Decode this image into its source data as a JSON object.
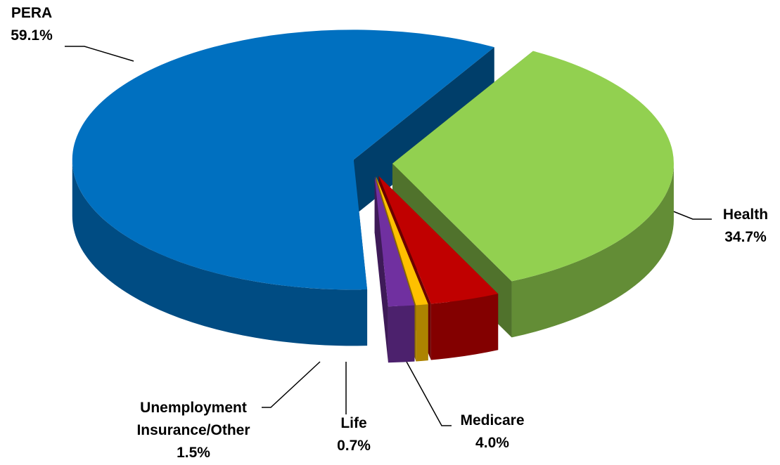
{
  "chart_data": {
    "type": "pie3d",
    "categories": [
      "Health",
      "Medicare",
      "Life",
      "Unemployment Insurance/Other",
      "PERA"
    ],
    "values": [
      34.7,
      4.0,
      0.7,
      1.5,
      59.1
    ],
    "value_labels": [
      "34.7%",
      "4.0%",
      "0.7%",
      "1.5%",
      "59.1%"
    ],
    "colors": [
      "#92d050",
      "#c00000",
      "#ffc000",
      "#7030a0",
      "#0070c0"
    ]
  }
}
